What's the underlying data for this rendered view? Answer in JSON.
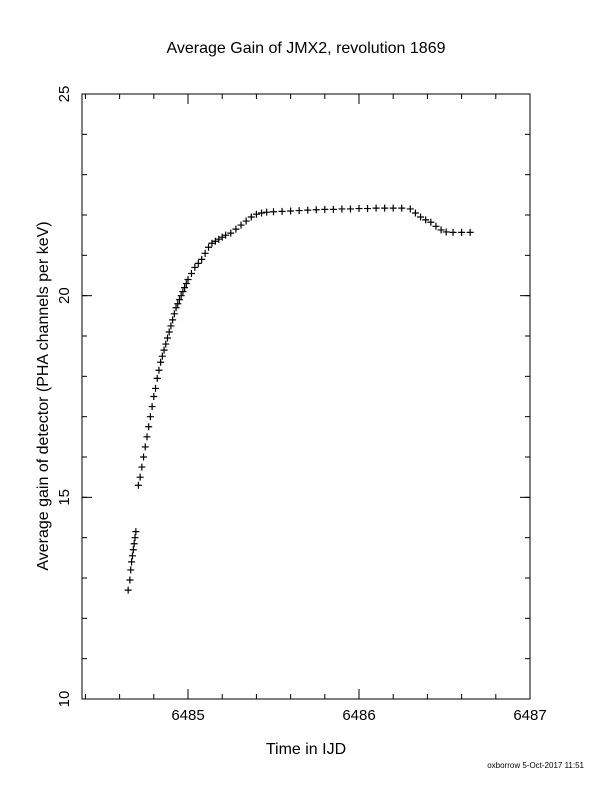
{
  "chart_data": {
    "type": "scatter",
    "title": "Average Gain of JMX2, revolution 1869",
    "xlabel": "Time in IJD",
    "ylabel": "Average gain of detector (PHA channels per keV)",
    "xlim": [
      6484.38,
      6487.0
    ],
    "ylim": [
      10,
      25
    ],
    "xticks": [
      6485,
      6486,
      6487
    ],
    "xtick_labels": [
      "6485",
      "6486",
      "6487"
    ],
    "yticks": [
      10,
      15,
      20,
      25
    ],
    "ytick_labels": [
      "10",
      "15",
      "20",
      "25"
    ],
    "x_minor_step": 0.2,
    "y_minor_step": 1,
    "grid": false,
    "marker": "+",
    "series": [
      {
        "points": [
          [
            6484.65,
            12.7
          ],
          [
            6484.66,
            12.95
          ],
          [
            6484.665,
            13.2
          ],
          [
            6484.67,
            13.4
          ],
          [
            6484.675,
            13.55
          ],
          [
            6484.68,
            13.7
          ],
          [
            6484.685,
            13.85
          ],
          [
            6484.69,
            14.0
          ],
          [
            6484.695,
            14.15
          ],
          [
            6484.71,
            15.3
          ],
          [
            6484.72,
            15.5
          ],
          [
            6484.73,
            15.75
          ],
          [
            6484.74,
            16.0
          ],
          [
            6484.75,
            16.25
          ],
          [
            6484.76,
            16.5
          ],
          [
            6484.77,
            16.75
          ],
          [
            6484.78,
            17.0
          ],
          [
            6484.79,
            17.25
          ],
          [
            6484.8,
            17.5
          ],
          [
            6484.81,
            17.7
          ],
          [
            6484.82,
            17.95
          ],
          [
            6484.83,
            18.15
          ],
          [
            6484.84,
            18.35
          ],
          [
            6484.85,
            18.5
          ],
          [
            6484.86,
            18.65
          ],
          [
            6484.87,
            18.8
          ],
          [
            6484.88,
            18.95
          ],
          [
            6484.89,
            19.1
          ],
          [
            6484.9,
            19.25
          ],
          [
            6484.91,
            19.4
          ],
          [
            6484.92,
            19.55
          ],
          [
            6484.93,
            19.7
          ],
          [
            6484.94,
            19.8
          ],
          [
            6484.95,
            19.9
          ],
          [
            6484.96,
            20.0
          ],
          [
            6484.97,
            20.1
          ],
          [
            6484.98,
            20.2
          ],
          [
            6484.99,
            20.3
          ],
          [
            6485.0,
            20.4
          ],
          [
            6485.02,
            20.55
          ],
          [
            6485.04,
            20.7
          ],
          [
            6485.06,
            20.8
          ],
          [
            6485.08,
            20.9
          ],
          [
            6485.1,
            21.05
          ],
          [
            6485.12,
            21.2
          ],
          [
            6485.14,
            21.3
          ],
          [
            6485.16,
            21.35
          ],
          [
            6485.18,
            21.4
          ],
          [
            6485.2,
            21.45
          ],
          [
            6485.22,
            21.5
          ],
          [
            6485.25,
            21.55
          ],
          [
            6485.28,
            21.65
          ],
          [
            6485.31,
            21.75
          ],
          [
            6485.34,
            21.85
          ],
          [
            6485.37,
            21.95
          ],
          [
            6485.4,
            22.02
          ],
          [
            6485.43,
            22.05
          ],
          [
            6485.46,
            22.07
          ],
          [
            6485.5,
            22.08
          ],
          [
            6485.55,
            22.09
          ],
          [
            6485.6,
            22.1
          ],
          [
            6485.65,
            22.11
          ],
          [
            6485.7,
            22.12
          ],
          [
            6485.75,
            22.13
          ],
          [
            6485.8,
            22.14
          ],
          [
            6485.85,
            22.14
          ],
          [
            6485.9,
            22.15
          ],
          [
            6485.95,
            22.15
          ],
          [
            6486.0,
            22.16
          ],
          [
            6486.05,
            22.16
          ],
          [
            6486.1,
            22.17
          ],
          [
            6486.15,
            22.17
          ],
          [
            6486.2,
            22.17
          ],
          [
            6486.25,
            22.17
          ],
          [
            6486.3,
            22.15
          ],
          [
            6486.33,
            22.05
          ],
          [
            6486.36,
            21.95
          ],
          [
            6486.39,
            21.88
          ],
          [
            6486.42,
            21.82
          ],
          [
            6486.45,
            21.72
          ],
          [
            6486.48,
            21.63
          ],
          [
            6486.51,
            21.58
          ],
          [
            6486.55,
            21.57
          ],
          [
            6486.6,
            21.57
          ],
          [
            6486.65,
            21.57
          ]
        ]
      }
    ]
  },
  "footer": {
    "stamp": "oxborrow  5-Oct-2017 11:51"
  }
}
